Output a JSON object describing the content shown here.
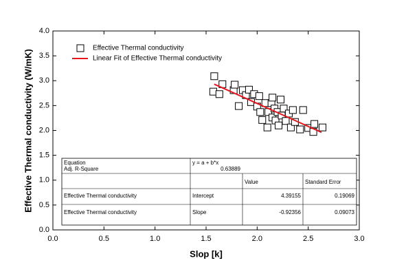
{
  "chart_data": {
    "type": "scatter",
    "x_label": "Slop [k]",
    "y_label": "Effective Thermal conductivity (W/mK)",
    "xlim": [
      0,
      3.0
    ],
    "ylim": [
      0,
      4.0
    ],
    "xticks": [
      {
        "value": 0,
        "label": "0.0"
      },
      {
        "value": 0.5,
        "label": "0.5"
      },
      {
        "value": 1.0,
        "label": "1.0"
      },
      {
        "value": 1.5,
        "label": "1.5"
      },
      {
        "value": 2.0,
        "label": "2.0"
      },
      {
        "value": 2.5,
        "label": "2.5"
      },
      {
        "value": 3.0,
        "label": "3.0"
      }
    ],
    "yticks": [
      {
        "value": 0,
        "label": "0.0"
      },
      {
        "value": 0.5,
        "label": "0.5"
      },
      {
        "value": 1.0,
        "label": "1.0"
      },
      {
        "value": 1.5,
        "label": "1.5"
      },
      {
        "value": 2.0,
        "label": "2.0"
      },
      {
        "value": 2.5,
        "label": "2.5"
      },
      {
        "value": 3.0,
        "label": "3.0"
      },
      {
        "value": 3.5,
        "label": "3.5"
      },
      {
        "value": 4.0,
        "label": "4.0"
      }
    ],
    "series": [
      {
        "name": "Effective Thermal conductivity",
        "type": "scatter",
        "color": "#000000",
        "x": [
          1.58,
          1.57,
          1.63,
          1.66,
          1.77,
          1.78,
          1.82,
          1.86,
          1.89,
          1.92,
          1.94,
          1.97,
          2.0,
          2.02,
          2.03,
          2.05,
          2.08,
          2.1,
          2.11,
          2.14,
          2.15,
          2.15,
          2.17,
          2.18,
          2.2,
          2.21,
          2.23,
          2.24,
          2.26,
          2.28,
          2.31,
          2.33,
          2.35,
          2.37,
          2.42,
          2.45,
          2.5,
          2.55,
          2.56,
          2.64
        ],
        "values": [
          3.09,
          2.78,
          2.73,
          2.93,
          2.81,
          2.92,
          2.49,
          2.81,
          2.71,
          2.82,
          2.57,
          2.73,
          2.48,
          2.69,
          2.37,
          2.21,
          2.55,
          2.06,
          2.37,
          2.55,
          2.66,
          2.26,
          2.44,
          2.2,
          2.37,
          2.1,
          2.62,
          2.3,
          2.44,
          2.19,
          2.34,
          2.06,
          2.41,
          2.17,
          2.02,
          2.41,
          2.05,
          1.97,
          2.13,
          2.06
        ]
      },
      {
        "name": "Linear Fit of Effective Thermal conductivity",
        "type": "line",
        "color": "#e8141b",
        "x": [
          1.58,
          2.63
        ],
        "values": [
          2.93,
          1.96
        ]
      }
    ],
    "table": {
      "rows": [
        [
          "Equation",
          "y = a + b*x",
          null,
          null
        ],
        [
          "Adj. R-Square",
          "0.63889",
          null,
          null
        ],
        [
          null,
          null,
          "Value",
          "Standard Error"
        ],
        [
          "Effective Thermal conductivity",
          "Intercept",
          "4.39155",
          "0.19069"
        ],
        [
          "Effective Thermal conductivity",
          "Slope",
          "-0.92356",
          "0.09073"
        ]
      ]
    }
  }
}
